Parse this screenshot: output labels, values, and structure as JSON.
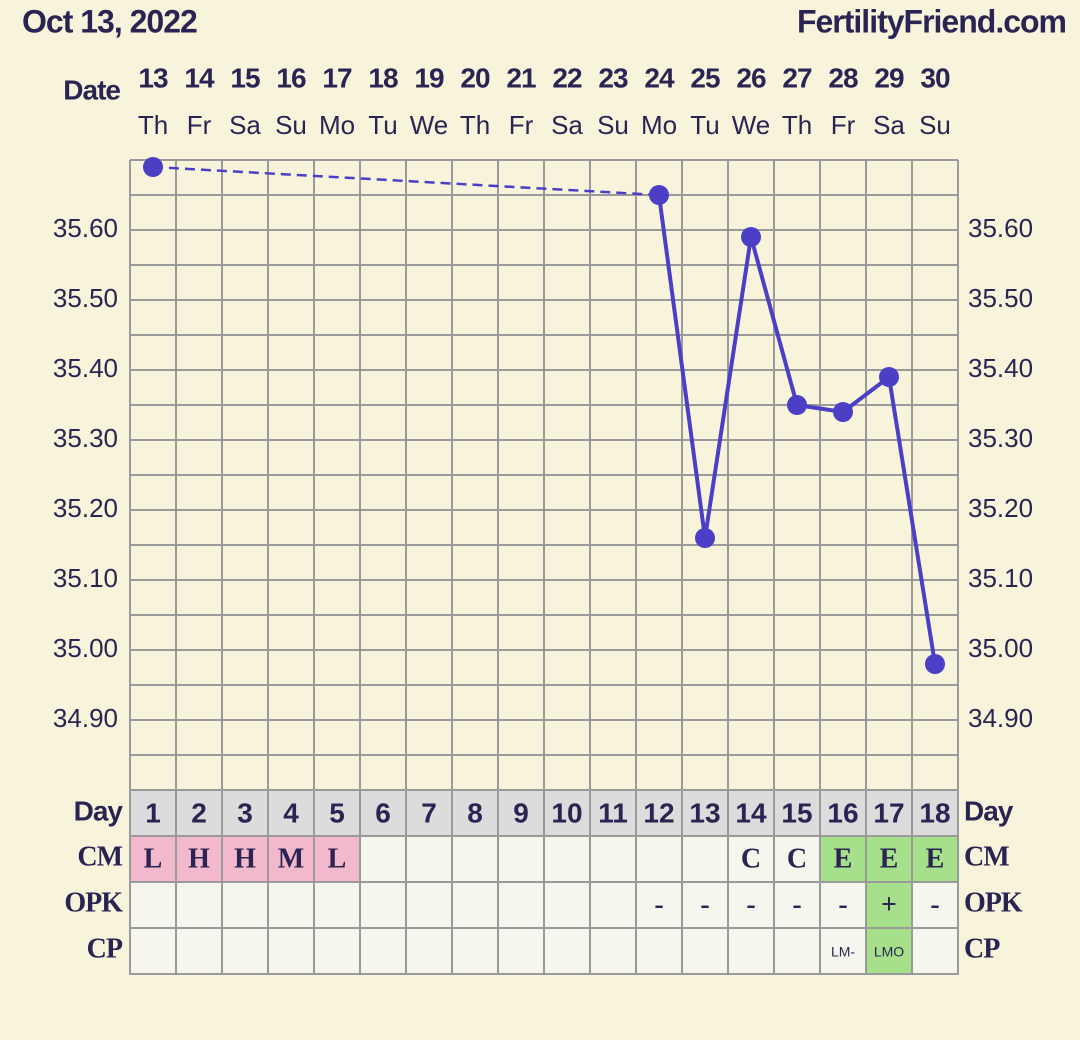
{
  "date_label": "Oct 13, 2022",
  "site": "FertilityFriend.com",
  "chart_data": {
    "type": "line",
    "x_label": "Date",
    "categories": [
      "13",
      "14",
      "15",
      "16",
      "17",
      "18",
      "19",
      "20",
      "21",
      "22",
      "23",
      "24",
      "25",
      "26",
      "27",
      "28",
      "29",
      "30"
    ],
    "weekdays": [
      "Th",
      "Fr",
      "Sa",
      "Su",
      "Mo",
      "Tu",
      "We",
      "Th",
      "Fr",
      "Sa",
      "Su",
      "Mo",
      "Tu",
      "We",
      "Th",
      "Fr",
      "Sa",
      "Su"
    ],
    "values": [
      35.69,
      null,
      null,
      null,
      null,
      null,
      null,
      null,
      null,
      null,
      null,
      35.65,
      35.16,
      35.59,
      35.35,
      35.34,
      35.39,
      34.98
    ],
    "color": "#4b3fc6",
    "ylim": [
      34.8,
      35.7
    ],
    "yticks": [
      {
        "value": 34.9,
        "label": "34.90"
      },
      {
        "value": 35.0,
        "label": "35.00"
      },
      {
        "value": 35.1,
        "label": "35.10"
      },
      {
        "value": 35.2,
        "label": "35.20"
      },
      {
        "value": 35.3,
        "label": "35.30"
      },
      {
        "value": 35.4,
        "label": "35.40"
      },
      {
        "value": 35.5,
        "label": "35.50"
      },
      {
        "value": 35.6,
        "label": "35.60"
      }
    ],
    "grid": true,
    "rows": [
      {
        "label": "Day",
        "cells": [
          1,
          2,
          3,
          4,
          5,
          6,
          7,
          8,
          9,
          10,
          11,
          12,
          13,
          14,
          15,
          16,
          17,
          18
        ],
        "fill": "#dcdcdc",
        "colors": [
          null,
          null,
          null,
          null,
          null,
          null,
          null,
          null,
          null,
          null,
          null,
          null,
          null,
          null,
          null,
          null,
          null,
          null
        ]
      },
      {
        "label": "CM",
        "cells": [
          "L",
          "H",
          "H",
          "M",
          "L",
          null,
          null,
          null,
          null,
          null,
          null,
          null,
          null,
          "C",
          "C",
          "E",
          "E",
          "E"
        ],
        "fill": "#f6f6ee",
        "colors": [
          "#f2b8cb",
          "#f2b8cb",
          "#f2b8cb",
          "#f2b8cb",
          "#f2b8cb",
          null,
          null,
          null,
          null,
          null,
          null,
          null,
          null,
          null,
          null,
          "#a6e08a",
          "#a6e08a",
          "#a6e08a"
        ]
      },
      {
        "label": "OPK",
        "cells": [
          null,
          null,
          null,
          null,
          null,
          null,
          null,
          null,
          null,
          null,
          null,
          "-",
          "-",
          "-",
          "-",
          "-",
          "+",
          "-"
        ],
        "fill": "#f6f6ee",
        "colors": [
          null,
          null,
          null,
          null,
          null,
          null,
          null,
          null,
          null,
          null,
          null,
          null,
          null,
          null,
          null,
          null,
          "#a6e08a",
          null
        ]
      },
      {
        "label": "CP",
        "cells": [
          null,
          null,
          null,
          null,
          null,
          null,
          null,
          null,
          null,
          null,
          null,
          null,
          null,
          null,
          null,
          "LM-",
          "LMO",
          null
        ],
        "fill": "#f6f6ee",
        "colors": [
          null,
          null,
          null,
          null,
          null,
          null,
          null,
          null,
          null,
          null,
          null,
          null,
          null,
          null,
          null,
          null,
          "#a6e08a",
          null
        ]
      }
    ]
  }
}
